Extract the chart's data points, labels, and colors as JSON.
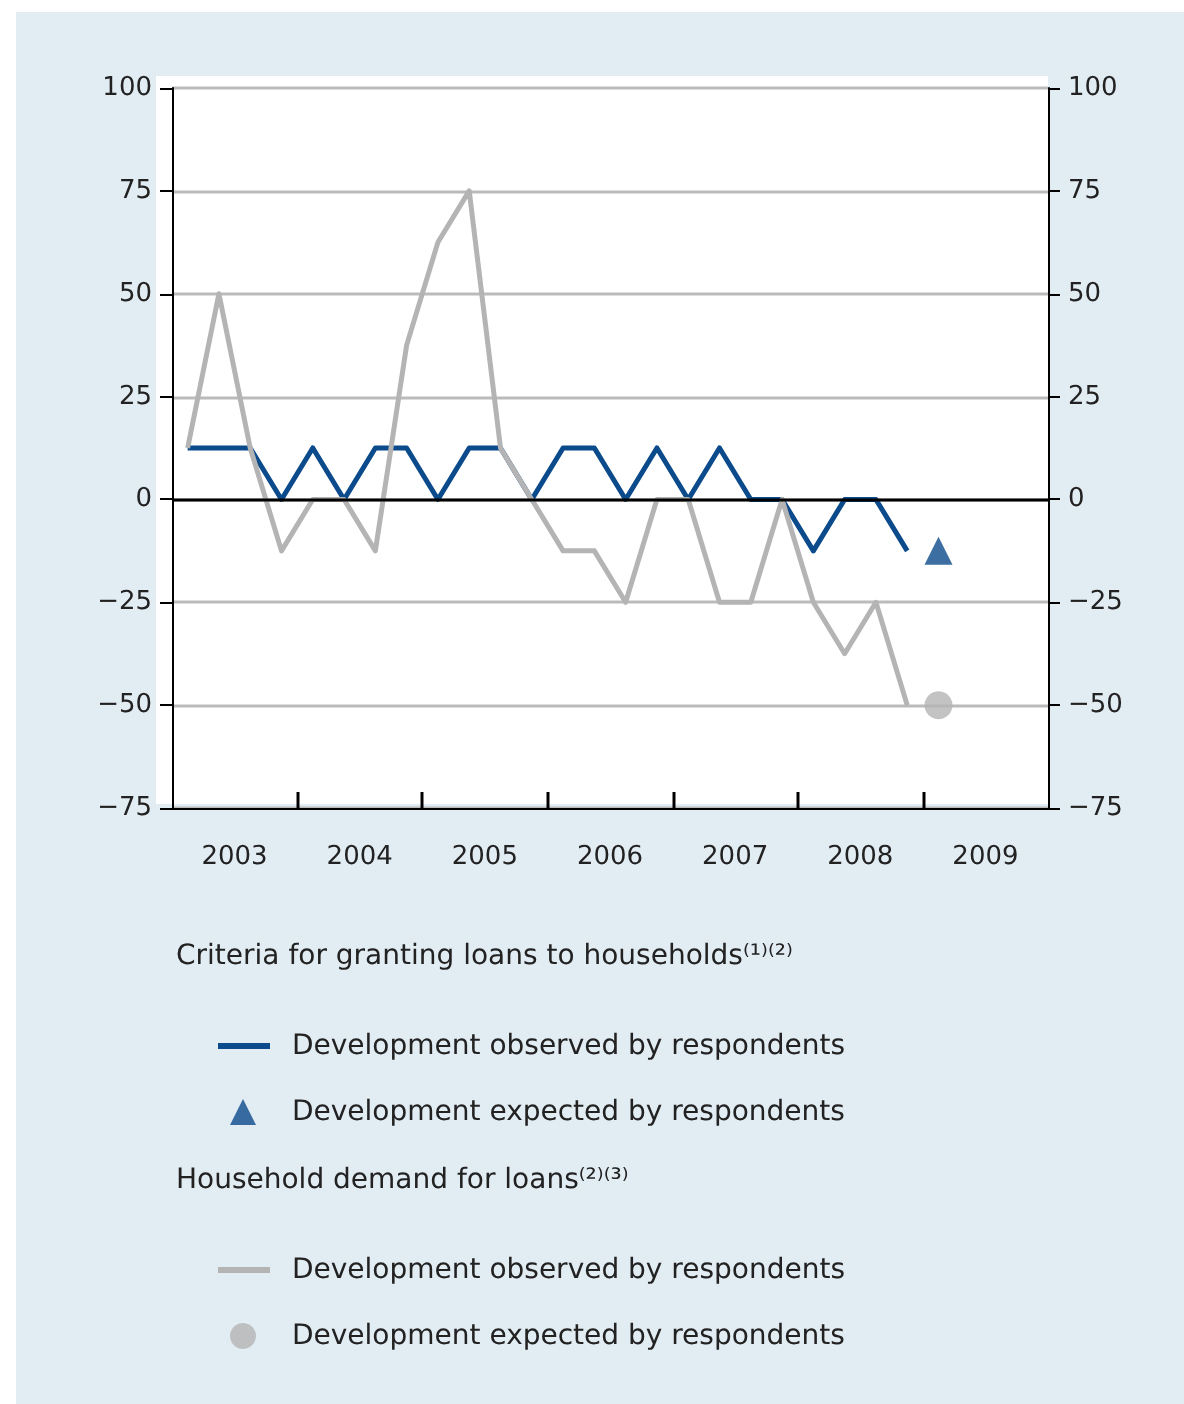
{
  "chart_data": {
    "type": "line",
    "annotations": [
      "Criteria for granting loans to households⁽¹⁾⁽²⁾",
      "Household demand for loans⁽²⁾⁽³⁾"
    ],
    "xlim": [
      2003,
      2010
    ],
    "xticks": [
      {
        "value": 2003.5,
        "label": "2003"
      },
      {
        "value": 2004,
        "label": null
      },
      {
        "value": 2004.5,
        "label": "2004"
      },
      {
        "value": 2005,
        "label": null
      },
      {
        "value": 2005.5,
        "label": "2005"
      },
      {
        "value": 2006,
        "label": null
      },
      {
        "value": 2006.5,
        "label": "2006"
      },
      {
        "value": 2007,
        "label": null
      },
      {
        "value": 2007.5,
        "label": "2007"
      },
      {
        "value": 2008,
        "label": null
      },
      {
        "value": 2008.5,
        "label": "2008"
      },
      {
        "value": 2009,
        "label": null
      },
      {
        "value": 2009.5,
        "label": "2009"
      }
    ],
    "ylim": [
      -75,
      100
    ],
    "yticks": [
      -75,
      -50,
      -25,
      0,
      25,
      50,
      75,
      100
    ],
    "y2lim": [
      -75,
      100
    ],
    "y2ticks": [
      -75,
      -50,
      -25,
      0,
      25,
      50,
      75,
      100
    ],
    "grid": "y",
    "legend": "bottom",
    "line_style": "solid",
    "ref_lines": [
      {
        "axis": "y",
        "value": 0,
        "color": "#000000"
      }
    ],
    "series": [
      {
        "name": "Development observed by respondents",
        "marker": "none",
        "color": "#0b4a8b",
        "x": [
          2003.125,
          2003.375,
          2003.625,
          2003.875,
          2004.125,
          2004.375,
          2004.625,
          2004.875,
          2005.125,
          2005.375,
          2005.625,
          2005.875,
          2006.125,
          2006.375,
          2006.625,
          2006.875,
          2007.125,
          2007.375,
          2007.625,
          2007.875,
          2008.125,
          2008.375,
          2008.625,
          2008.875
        ],
        "values": [
          12.5,
          12.5,
          12.5,
          0,
          12.5,
          0,
          12.5,
          12.5,
          0,
          12.5,
          12.5,
          0,
          12.5,
          12.5,
          0,
          12.5,
          0,
          12.5,
          0,
          0,
          -12.5,
          0,
          0,
          -12.5
        ]
      },
      {
        "name": "Development expected by respondents",
        "type": "scatter",
        "marker": "triangle",
        "color": "#0b4a8b",
        "x": [
          2009.125
        ],
        "values": [
          -12.5
        ]
      },
      {
        "name": "Development observed by respondents",
        "marker": "none",
        "color": "#b4b4b4",
        "x": [
          2003.125,
          2003.375,
          2003.625,
          2003.875,
          2004.125,
          2004.375,
          2004.625,
          2004.875,
          2005.125,
          2005.375,
          2005.625,
          2005.875,
          2006.125,
          2006.375,
          2006.625,
          2006.875,
          2007.125,
          2007.375,
          2007.625,
          2007.875,
          2008.125,
          2008.375,
          2008.625,
          2008.875
        ],
        "values": [
          12.5,
          50,
          12.5,
          -12.5,
          0,
          0,
          -12.5,
          37.5,
          62.5,
          75,
          12.5,
          0,
          -12.5,
          -12.5,
          -25,
          0,
          0,
          -25,
          -25,
          0,
          -25,
          -37.5,
          -25,
          -50
        ]
      },
      {
        "name": "Development expected by respondents",
        "type": "scatter",
        "marker": "circle",
        "color": "#b4b4b4",
        "x": [
          2009.125
        ],
        "values": [
          -50
        ]
      }
    ]
  }
}
